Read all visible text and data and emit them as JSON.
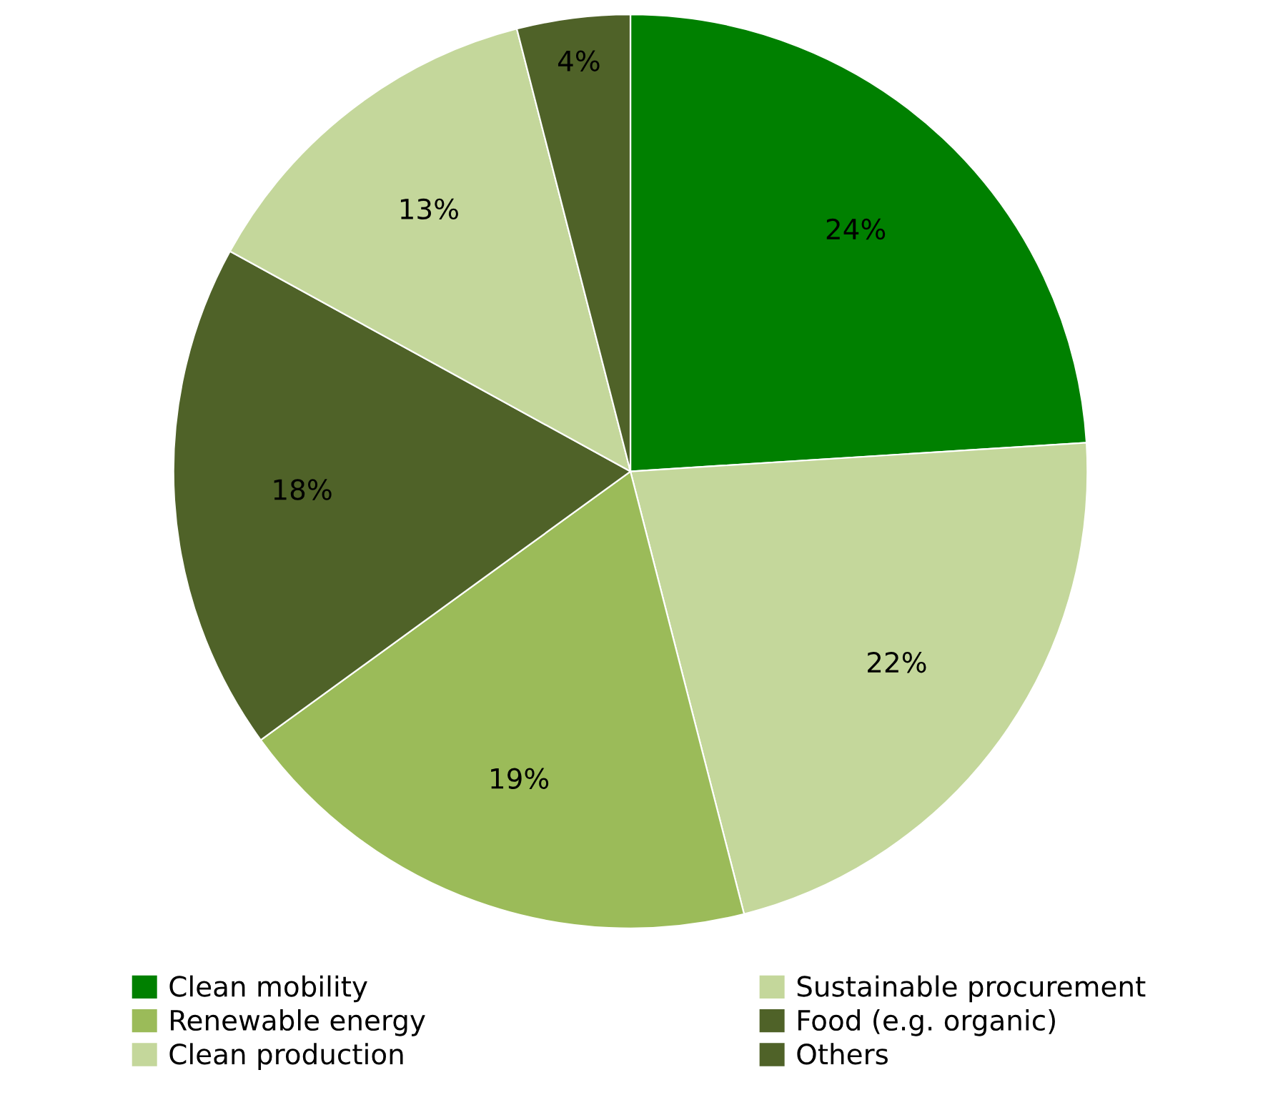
{
  "chart_data": {
    "type": "pie",
    "categories": [
      "Clean mobility",
      "Sustainable procurement",
      "Renewable energy",
      "Food (e.g. organic)",
      "Clean production",
      "Others"
    ],
    "values": [
      24,
      22,
      19,
      18,
      13,
      4
    ],
    "colors": [
      "#008000",
      "#c4d79b",
      "#9bbb59",
      "#4f6228",
      "#c4d79b",
      "#4f6228"
    ],
    "value_labels": [
      "24%",
      "22%",
      "19%",
      "18%",
      "13%",
      "4%"
    ],
    "legend": "bottom"
  }
}
